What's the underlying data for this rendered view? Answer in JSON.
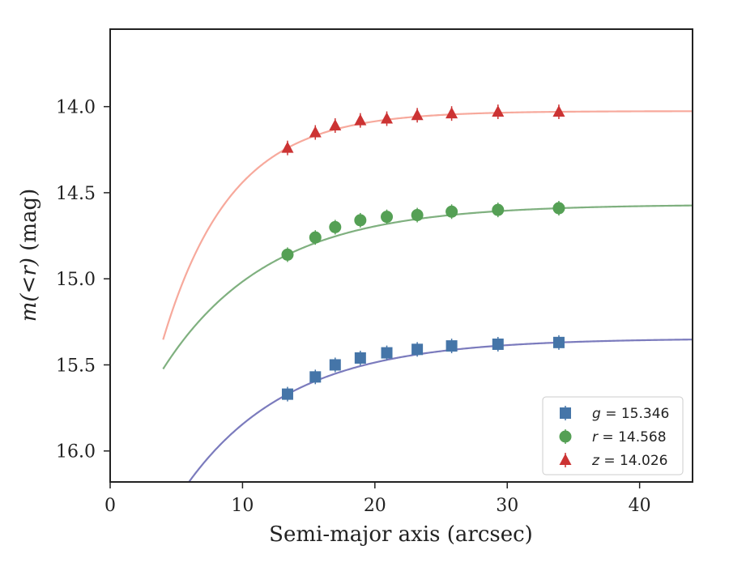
{
  "chart_data": {
    "type": "scatter",
    "xlabel": "Semi-major axis (arcsec)",
    "ylabel_math": "m(<r)",
    "ylabel_unit": " (mag)",
    "xlim": [
      0,
      44
    ],
    "ylim": [
      16.18,
      13.55
    ],
    "xticks": [
      0,
      10,
      20,
      30,
      40
    ],
    "xtick_labels": [
      "0",
      "10",
      "20",
      "30",
      "40"
    ],
    "yticks": [
      14.0,
      14.5,
      15.0,
      15.5,
      16.0
    ],
    "ytick_labels": [
      "14.0",
      "14.5",
      "15.0",
      "15.5",
      "16.0"
    ],
    "grid": false,
    "legend_position": "bottom-right",
    "series": [
      {
        "name": "g = 15.346",
        "band": "g",
        "total_mag": "15.346",
        "marker": "square",
        "marker_color": "#4575a8",
        "curve_color": "#7b7bbd",
        "asymptote": 15.346,
        "x": [
          13.4,
          15.5,
          17.0,
          18.9,
          20.9,
          23.2,
          25.8,
          29.3,
          33.9
        ],
        "y": [
          15.67,
          15.57,
          15.5,
          15.46,
          15.43,
          15.41,
          15.39,
          15.38,
          15.37
        ]
      },
      {
        "name": "r = 14.568",
        "band": "r",
        "total_mag": "14.568",
        "marker": "circle",
        "marker_color": "#55a055",
        "curve_color": "#7fb07f",
        "asymptote": 14.568,
        "x": [
          13.4,
          15.5,
          17.0,
          18.9,
          20.9,
          23.2,
          25.8,
          29.3,
          33.9
        ],
        "y": [
          14.86,
          14.76,
          14.7,
          14.66,
          14.64,
          14.63,
          14.61,
          14.6,
          14.59
        ]
      },
      {
        "name": "z = 14.026",
        "band": "z",
        "total_mag": "14.026",
        "marker": "triangle",
        "marker_color": "#cc3333",
        "curve_color": "#f7a99c",
        "asymptote": 14.026,
        "x": [
          13.4,
          15.5,
          17.0,
          18.9,
          20.9,
          23.2,
          25.8,
          29.3,
          33.9
        ],
        "y": [
          14.24,
          14.15,
          14.11,
          14.08,
          14.07,
          14.05,
          14.04,
          14.03,
          14.03
        ]
      }
    ]
  }
}
